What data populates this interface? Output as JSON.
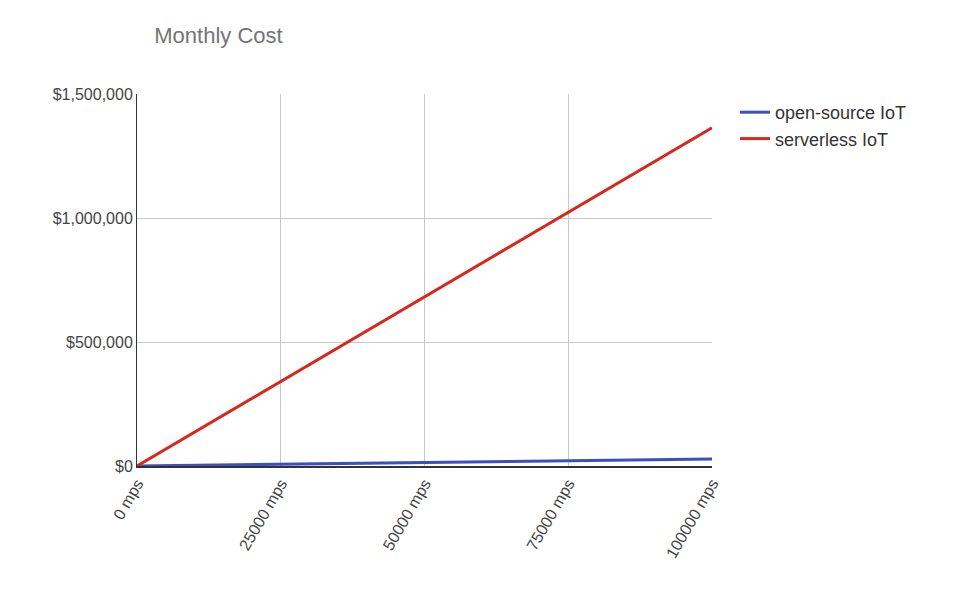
{
  "chart_data": {
    "type": "line",
    "title": "Monthly Cost",
    "x": [
      0,
      25000,
      50000,
      75000,
      100000
    ],
    "series": [
      {
        "name": "open-source IoT",
        "color": "#3a4fc1",
        "values": [
          0,
          7000,
          14000,
          21000,
          28000
        ]
      },
      {
        "name": "serverless IoT",
        "color": "#d42a1e",
        "values": [
          0,
          341000,
          682000,
          1023000,
          1364000
        ]
      }
    ],
    "xlim": [
      0,
      100000
    ],
    "xticks": [
      {
        "value": 0,
        "label": "0 mps"
      },
      {
        "value": 25000,
        "label": "25000 mps"
      },
      {
        "value": 50000,
        "label": "50000 mps"
      },
      {
        "value": 75000,
        "label": "75000 mps"
      },
      {
        "value": 100000,
        "label": "100000 mps"
      }
    ],
    "ylim": [
      0,
      1500000
    ],
    "yticks": [
      {
        "value": 0,
        "label": "$0"
      },
      {
        "value": 500000,
        "label": "$500,000"
      },
      {
        "value": 1000000,
        "label": "$1,000,000"
      },
      {
        "value": 1500000,
        "label": "$1,500,000"
      }
    ],
    "grid": true,
    "legend": "right"
  }
}
